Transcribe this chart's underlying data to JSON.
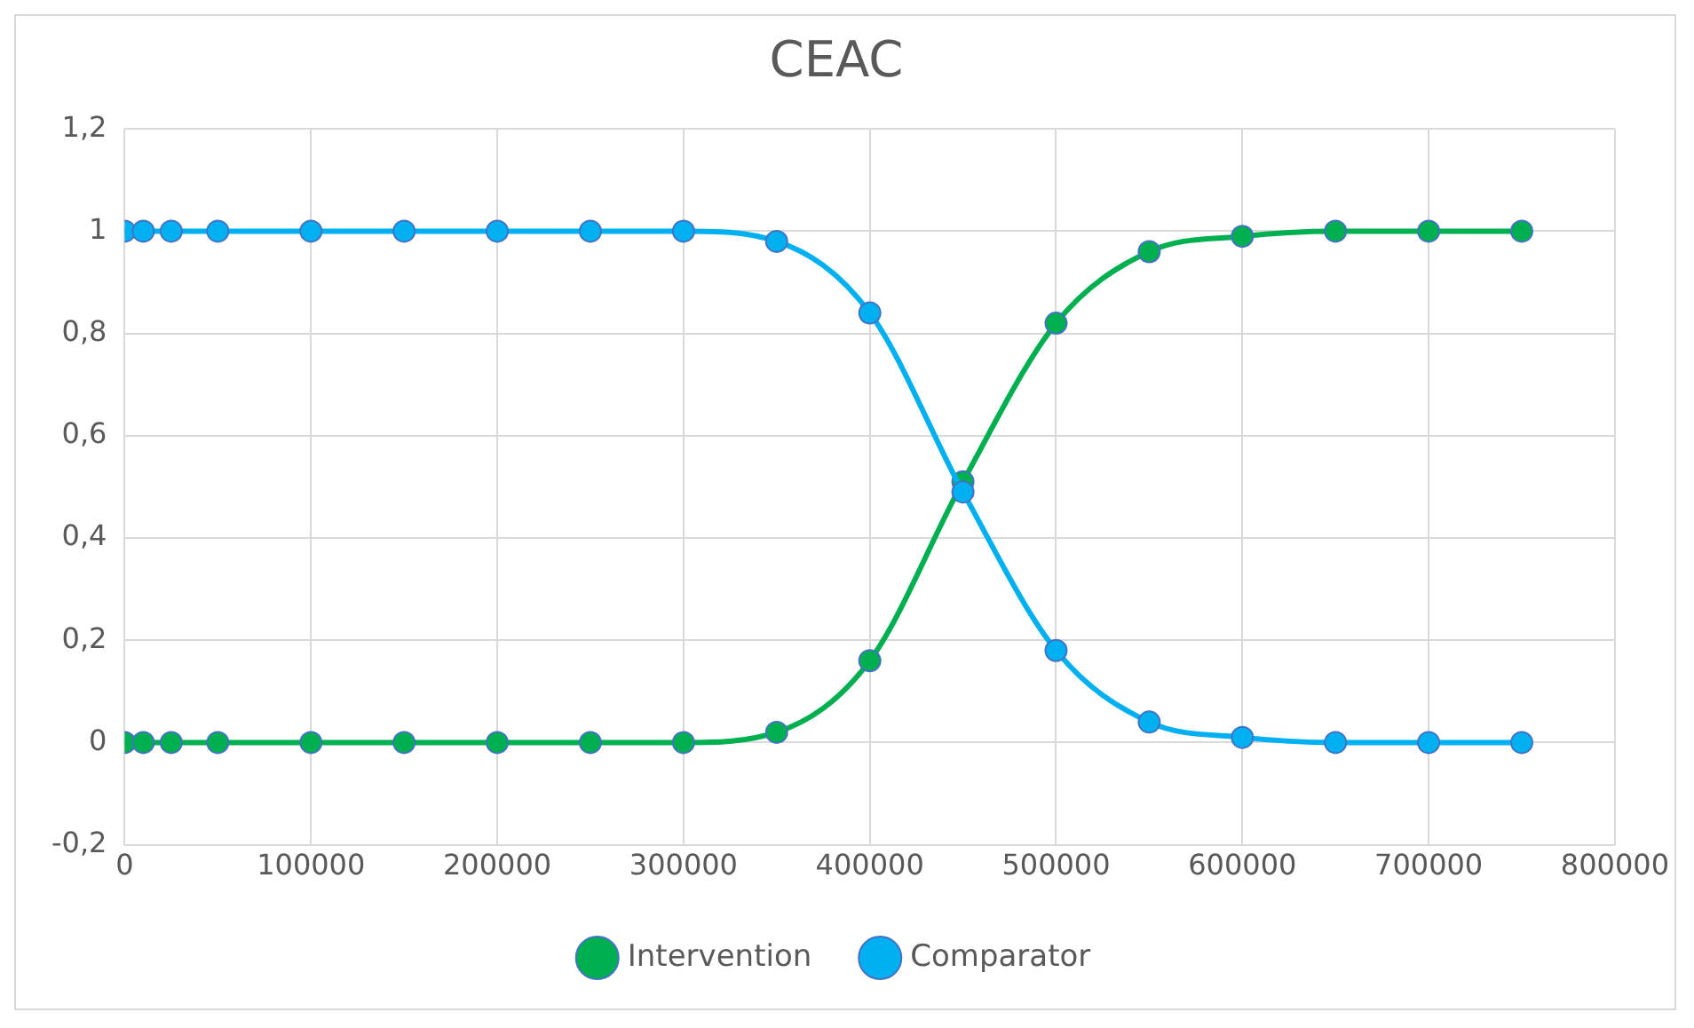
{
  "chart_data": {
    "type": "line",
    "title": "CEAC",
    "x": [
      0,
      10000,
      25000,
      50000,
      100000,
      150000,
      200000,
      250000,
      300000,
      350000,
      400000,
      450000,
      500000,
      550000,
      600000,
      650000,
      700000,
      750000
    ],
    "series": [
      {
        "name": "Intervention",
        "color": "#00b050",
        "values": [
          0,
          0,
          0,
          0,
          0,
          0,
          0,
          0,
          0,
          0.02,
          0.16,
          0.51,
          0.82,
          0.96,
          0.99,
          1,
          1,
          1
        ]
      },
      {
        "name": "Comparator",
        "color": "#00b0f0",
        "values": [
          1,
          1,
          1,
          1,
          1,
          1,
          1,
          1,
          1,
          0.98,
          0.84,
          0.49,
          0.18,
          0.04,
          0.01,
          0,
          0,
          0
        ]
      }
    ],
    "xlim": [
      0,
      800000
    ],
    "xticks": [
      0,
      100000,
      200000,
      300000,
      400000,
      500000,
      600000,
      700000,
      800000
    ],
    "ylim": [
      -0.2,
      1.2
    ],
    "yticks": [
      {
        "value": -0.2,
        "label": "-0,2"
      },
      0,
      {
        "value": 0.2,
        "label": "0,2"
      },
      {
        "value": 0.4,
        "label": "0,4"
      },
      {
        "value": 0.6,
        "label": "0,6"
      },
      {
        "value": 0.8,
        "label": "0,8"
      },
      1,
      {
        "value": 1.2,
        "label": "1,2"
      }
    ],
    "grid": true,
    "legend": "bottom",
    "marker": "circle",
    "line_style": "solid"
  }
}
